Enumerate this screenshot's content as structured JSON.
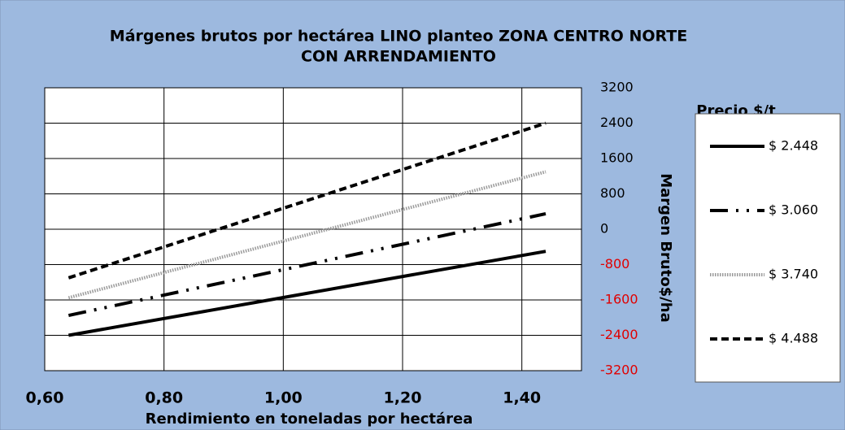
{
  "chart_data": {
    "type": "line",
    "title_lines": [
      "Márgenes brutos por hectárea LINO planteo ZONA CENTRO NORTE",
      "CON ARRENDAMIENTO"
    ],
    "x_label": "Rendimiento en toneladas por hectárea",
    "y_label": "Margen Bruto$/ha",
    "legend_title": "Precio $/t",
    "legend": "right",
    "grid": true,
    "x": [
      0.64,
      1.44
    ],
    "xlim": [
      0.6,
      1.5
    ],
    "xticks": [
      {
        "value": 0.6,
        "label": "0,60"
      },
      {
        "value": 0.8,
        "label": "0,80"
      },
      {
        "value": 1.0,
        "label": "1,00"
      },
      {
        "value": 1.2,
        "label": "1,20"
      },
      {
        "value": 1.4,
        "label": "1,40"
      }
    ],
    "ylim": [
      -3200,
      3200
    ],
    "yticks": [
      -3200,
      -2400,
      -1600,
      -800,
      0,
      800,
      1600,
      2400,
      3200
    ],
    "negative_tick_color": "#e00000",
    "series": [
      {
        "name": "$ 2.448",
        "color": "#000000",
        "dash": "none",
        "values": [
          -2400,
          -500
        ]
      },
      {
        "name": "$ 3.060",
        "color": "#000000",
        "dash": "22 10 3 10 3 10",
        "values": [
          -1950,
          350
        ]
      },
      {
        "name": "$ 3.740",
        "color": "#9a9a9a",
        "dash": "1.5 1.5",
        "values": [
          -1550,
          1300
        ]
      },
      {
        "name": "$ 4.488",
        "color": "#000000",
        "dash": "9 5",
        "values": [
          -1100,
          2400
        ]
      }
    ]
  }
}
